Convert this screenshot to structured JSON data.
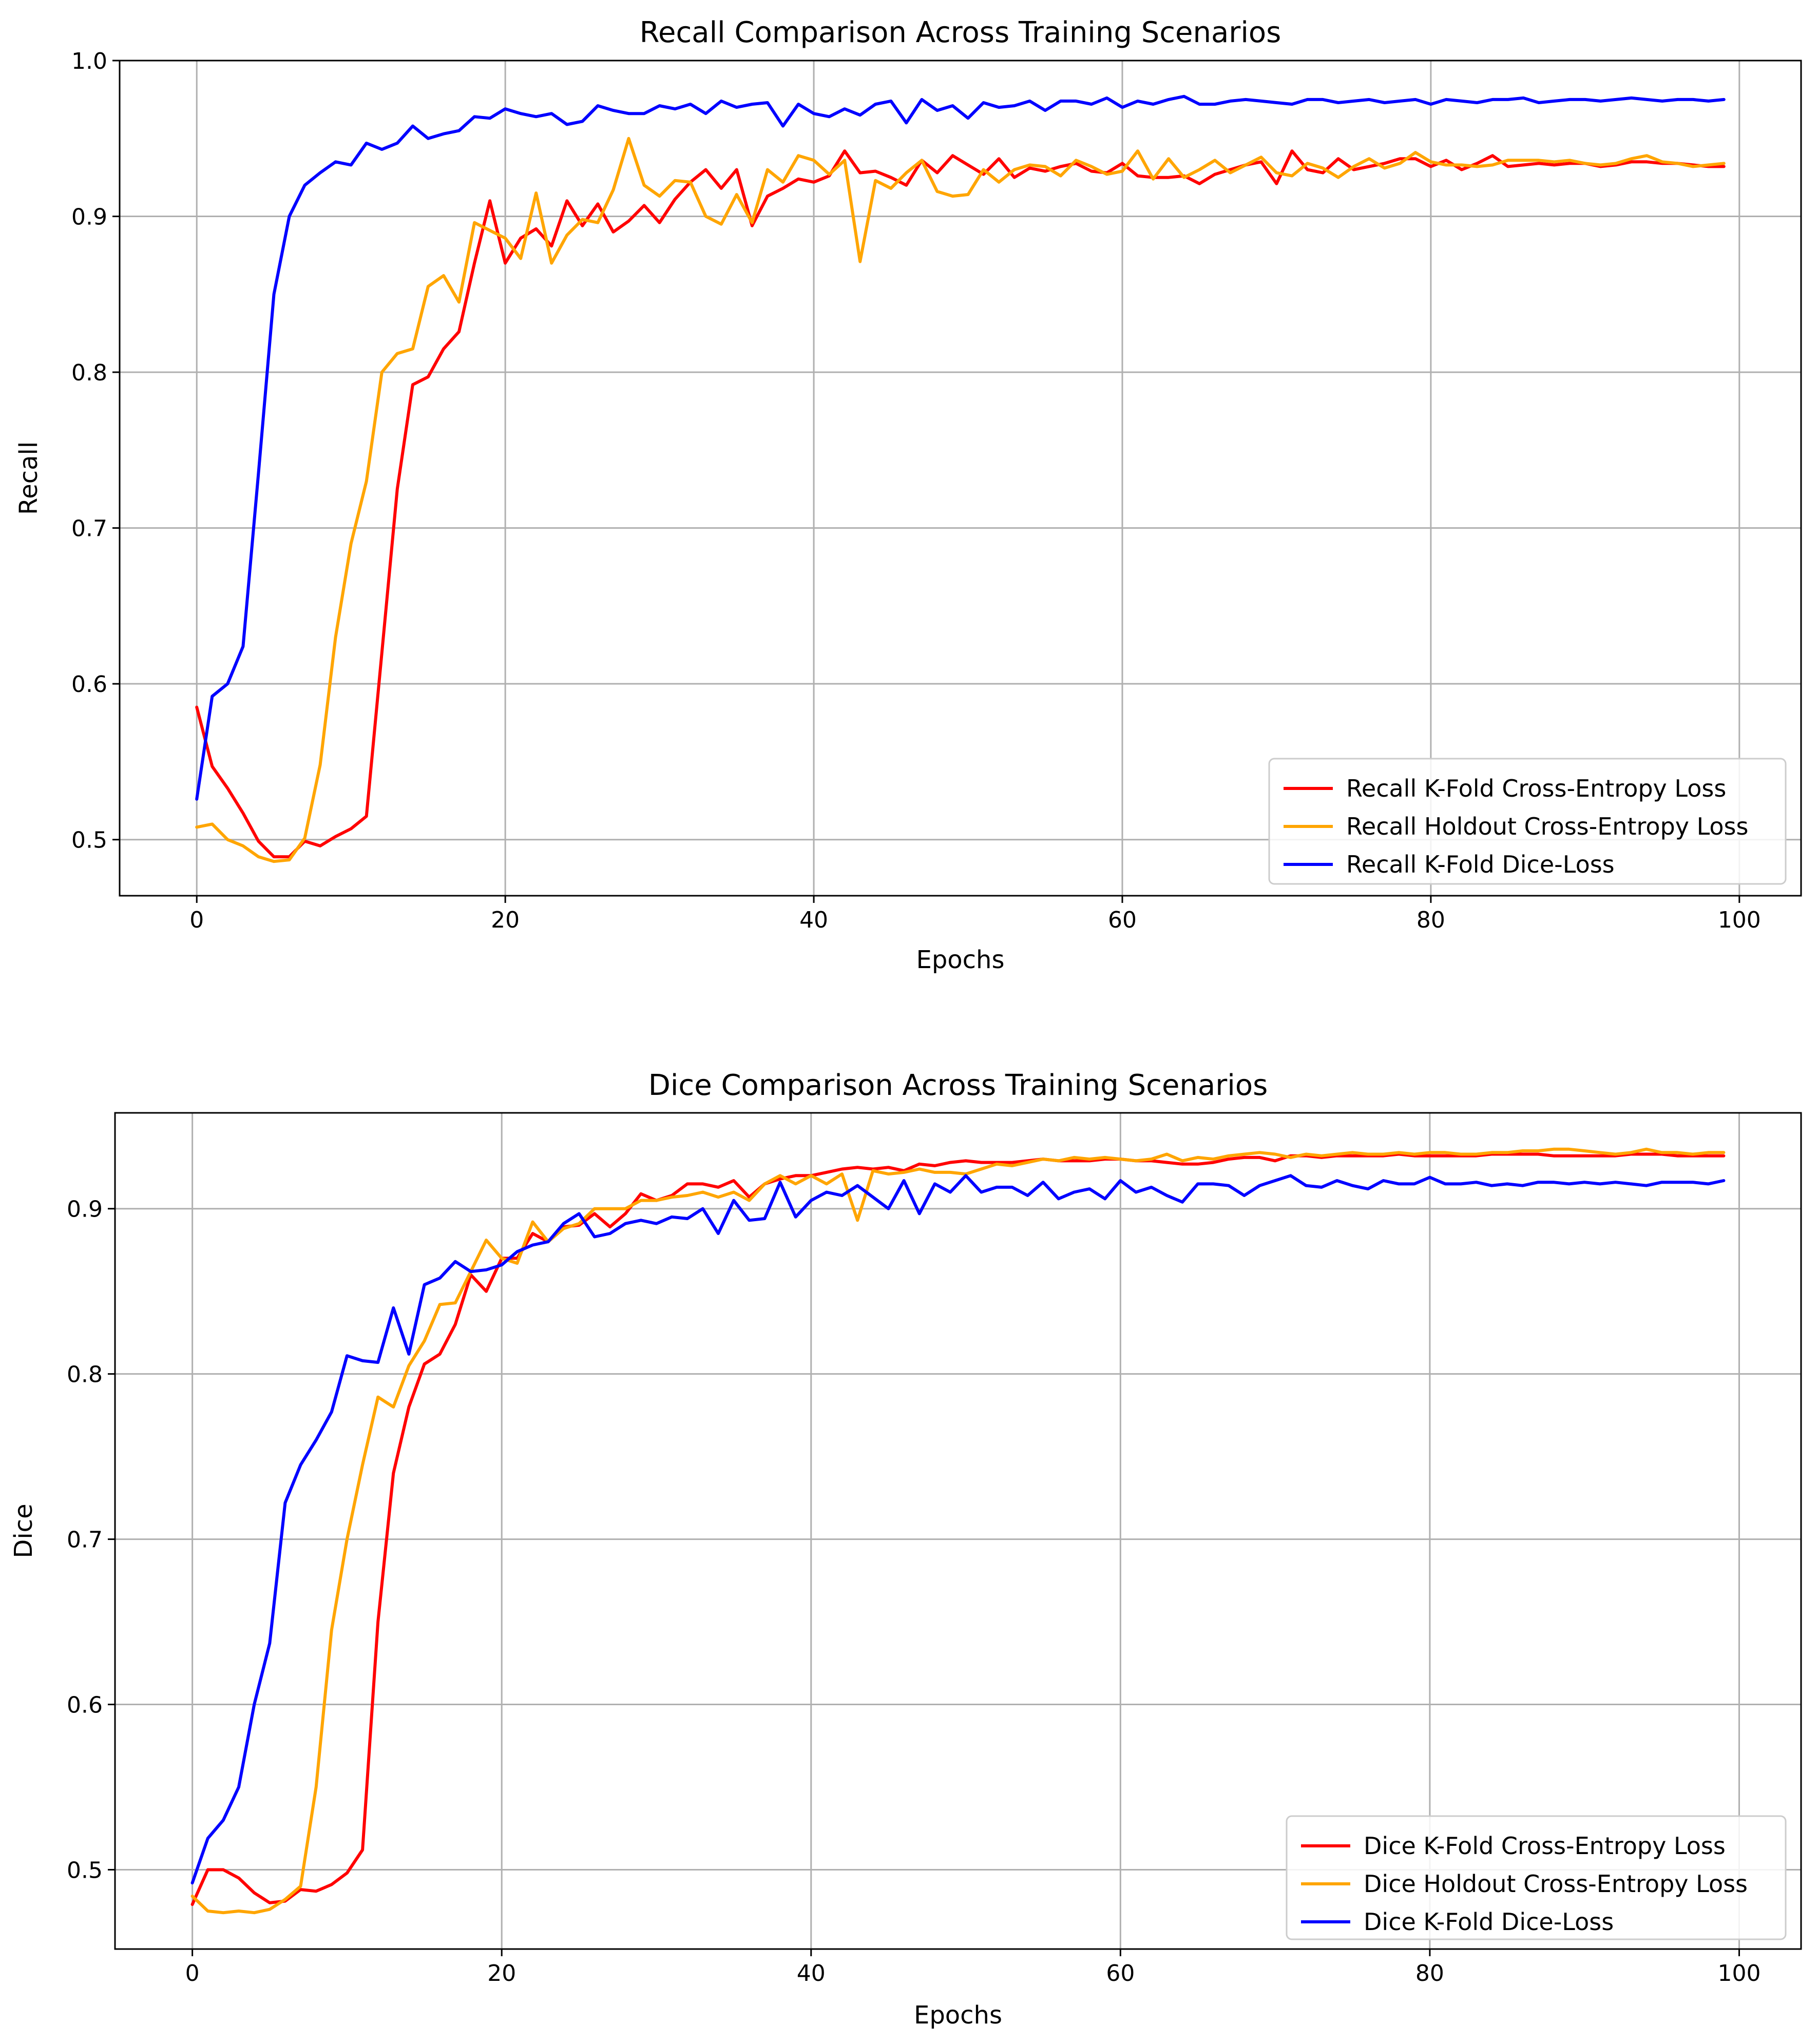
{
  "chart_data": [
    {
      "type": "line",
      "title": "Recall Comparison Across Training Scenarios",
      "xlabel": "Epochs",
      "ylabel": "Recall",
      "xlim": [
        -5,
        104
      ],
      "ylim": [
        0.464,
        1.0
      ],
      "xticks": [
        0,
        20,
        40,
        60,
        80,
        100
      ],
      "yticks": [
        0.5,
        0.6,
        0.7,
        0.8,
        0.9,
        1.0
      ],
      "xtick_labels": [
        "0",
        "20",
        "40",
        "60",
        "80",
        "100"
      ],
      "ytick_labels": [
        "0.5",
        "0.6",
        "0.7",
        "0.8",
        "0.9",
        "1.0"
      ],
      "grid": true,
      "legend_position": "lower-right",
      "series": [
        {
          "name": "Recall K-Fold Cross-Entropy Loss",
          "color": "#ff0000",
          "values": [
            0.585,
            0.547,
            0.533,
            0.517,
            0.499,
            0.489,
            0.489,
            0.499,
            0.496,
            0.502,
            0.507,
            0.515,
            0.62,
            0.725,
            0.792,
            0.797,
            0.815,
            0.826,
            0.87,
            0.91,
            0.87,
            0.886,
            0.892,
            0.881,
            0.91,
            0.894,
            0.908,
            0.89,
            0.897,
            0.907,
            0.896,
            0.911,
            0.922,
            0.93,
            0.918,
            0.93,
            0.894,
            0.913,
            0.918,
            0.924,
            0.922,
            0.926,
            0.942,
            0.928,
            0.929,
            0.925,
            0.92,
            0.936,
            0.928,
            0.939,
            0.933,
            0.927,
            0.937,
            0.925,
            0.931,
            0.929,
            0.932,
            0.934,
            0.929,
            0.928,
            0.934,
            0.926,
            0.925,
            0.925,
            0.926,
            0.921,
            0.927,
            0.93,
            0.933,
            0.935,
            0.921,
            0.942,
            0.93,
            0.928,
            0.937,
            0.93,
            0.932,
            0.934,
            0.937,
            0.937,
            0.932,
            0.936,
            0.93,
            0.934,
            0.939,
            0.932,
            0.933,
            0.934,
            0.933,
            0.934,
            0.934,
            0.932,
            0.933,
            0.935,
            0.935,
            0.934,
            0.934,
            0.933,
            0.932,
            0.932
          ]
        },
        {
          "name": "Recall Holdout Cross-Entropy Loss",
          "color": "#ffa500",
          "values": [
            0.508,
            0.51,
            0.5,
            0.496,
            0.489,
            0.486,
            0.487,
            0.501,
            0.548,
            0.63,
            0.69,
            0.73,
            0.8,
            0.812,
            0.815,
            0.855,
            0.862,
            0.845,
            0.896,
            0.891,
            0.886,
            0.873,
            0.915,
            0.87,
            0.888,
            0.898,
            0.896,
            0.917,
            0.95,
            0.92,
            0.913,
            0.923,
            0.922,
            0.9,
            0.895,
            0.914,
            0.896,
            0.93,
            0.922,
            0.939,
            0.936,
            0.927,
            0.936,
            0.871,
            0.923,
            0.918,
            0.928,
            0.936,
            0.916,
            0.913,
            0.914,
            0.93,
            0.922,
            0.93,
            0.933,
            0.932,
            0.926,
            0.936,
            0.932,
            0.927,
            0.929,
            0.942,
            0.924,
            0.937,
            0.925,
            0.93,
            0.936,
            0.928,
            0.933,
            0.938,
            0.928,
            0.926,
            0.934,
            0.931,
            0.925,
            0.932,
            0.937,
            0.931,
            0.934,
            0.941,
            0.935,
            0.933,
            0.933,
            0.932,
            0.933,
            0.936,
            0.936,
            0.936,
            0.935,
            0.936,
            0.934,
            0.933,
            0.934,
            0.937,
            0.939,
            0.935,
            0.934,
            0.932,
            0.933,
            0.934
          ]
        },
        {
          "name": "Recall K-Fold Dice-Loss",
          "color": "#0000ff",
          "values": [
            0.526,
            0.592,
            0.6,
            0.624,
            0.735,
            0.85,
            0.9,
            0.92,
            0.928,
            0.935,
            0.933,
            0.947,
            0.943,
            0.947,
            0.958,
            0.95,
            0.953,
            0.955,
            0.964,
            0.963,
            0.969,
            0.966,
            0.964,
            0.966,
            0.959,
            0.961,
            0.971,
            0.968,
            0.966,
            0.966,
            0.971,
            0.969,
            0.972,
            0.966,
            0.974,
            0.97,
            0.972,
            0.973,
            0.958,
            0.972,
            0.966,
            0.964,
            0.969,
            0.965,
            0.972,
            0.974,
            0.96,
            0.975,
            0.968,
            0.971,
            0.963,
            0.973,
            0.97,
            0.971,
            0.974,
            0.968,
            0.974,
            0.974,
            0.972,
            0.976,
            0.97,
            0.974,
            0.972,
            0.975,
            0.977,
            0.972,
            0.972,
            0.974,
            0.975,
            0.974,
            0.973,
            0.972,
            0.975,
            0.975,
            0.973,
            0.974,
            0.975,
            0.973,
            0.974,
            0.975,
            0.972,
            0.975,
            0.974,
            0.973,
            0.975,
            0.975,
            0.976,
            0.973,
            0.974,
            0.975,
            0.975,
            0.974,
            0.975,
            0.976,
            0.975,
            0.974,
            0.975,
            0.975,
            0.974,
            0.975
          ]
        }
      ]
    },
    {
      "type": "line",
      "title": "Dice Comparison Across Training Scenarios",
      "xlabel": "Epochs",
      "ylabel": "Dice",
      "xlim": [
        -5,
        104
      ],
      "ylim": [
        0.452,
        0.958
      ],
      "xticks": [
        0,
        20,
        40,
        60,
        80,
        100
      ],
      "yticks": [
        0.5,
        0.6,
        0.7,
        0.8,
        0.9
      ],
      "xtick_labels": [
        "0",
        "20",
        "40",
        "60",
        "80",
        "100"
      ],
      "ytick_labels": [
        "0.5",
        "0.6",
        "0.7",
        "0.8",
        "0.9"
      ],
      "grid": true,
      "legend_position": "lower-right",
      "series": [
        {
          "name": "Dice K-Fold Cross-Entropy Loss",
          "color": "#ff0000",
          "values": [
            0.479,
            0.5,
            0.5,
            0.495,
            0.486,
            0.48,
            0.481,
            0.488,
            0.487,
            0.491,
            0.498,
            0.512,
            0.65,
            0.74,
            0.78,
            0.806,
            0.812,
            0.83,
            0.86,
            0.85,
            0.87,
            0.87,
            0.885,
            0.88,
            0.889,
            0.89,
            0.897,
            0.889,
            0.897,
            0.909,
            0.905,
            0.908,
            0.915,
            0.915,
            0.913,
            0.917,
            0.907,
            0.915,
            0.918,
            0.92,
            0.92,
            0.922,
            0.924,
            0.925,
            0.924,
            0.925,
            0.923,
            0.927,
            0.926,
            0.928,
            0.929,
            0.928,
            0.928,
            0.928,
            0.929,
            0.93,
            0.929,
            0.929,
            0.929,
            0.93,
            0.93,
            0.929,
            0.929,
            0.928,
            0.927,
            0.927,
            0.928,
            0.93,
            0.931,
            0.931,
            0.929,
            0.932,
            0.932,
            0.931,
            0.932,
            0.932,
            0.932,
            0.932,
            0.933,
            0.932,
            0.932,
            0.932,
            0.932,
            0.932,
            0.933,
            0.933,
            0.933,
            0.933,
            0.932,
            0.932,
            0.932,
            0.932,
            0.932,
            0.933,
            0.933,
            0.933,
            0.932,
            0.932,
            0.932,
            0.932
          ]
        },
        {
          "name": "Dice Holdout Cross-Entropy Loss",
          "color": "#ffa500",
          "values": [
            0.484,
            0.475,
            0.474,
            0.475,
            0.474,
            0.476,
            0.482,
            0.49,
            0.55,
            0.645,
            0.7,
            0.745,
            0.786,
            0.78,
            0.805,
            0.82,
            0.842,
            0.843,
            0.862,
            0.881,
            0.87,
            0.867,
            0.892,
            0.88,
            0.888,
            0.891,
            0.9,
            0.9,
            0.9,
            0.905,
            0.905,
            0.907,
            0.908,
            0.91,
            0.907,
            0.91,
            0.905,
            0.915,
            0.92,
            0.915,
            0.92,
            0.915,
            0.921,
            0.893,
            0.923,
            0.921,
            0.922,
            0.924,
            0.922,
            0.922,
            0.921,
            0.924,
            0.927,
            0.926,
            0.928,
            0.93,
            0.929,
            0.931,
            0.93,
            0.931,
            0.93,
            0.929,
            0.93,
            0.933,
            0.929,
            0.931,
            0.93,
            0.932,
            0.933,
            0.934,
            0.933,
            0.931,
            0.933,
            0.932,
            0.933,
            0.934,
            0.933,
            0.933,
            0.934,
            0.933,
            0.934,
            0.934,
            0.933,
            0.933,
            0.934,
            0.934,
            0.935,
            0.935,
            0.936,
            0.936,
            0.935,
            0.934,
            0.933,
            0.934,
            0.936,
            0.934,
            0.934,
            0.933,
            0.934,
            0.934
          ]
        },
        {
          "name": "Dice K-Fold Dice-Loss",
          "color": "#0000ff",
          "values": [
            0.492,
            0.519,
            0.53,
            0.55,
            0.6,
            0.637,
            0.722,
            0.745,
            0.76,
            0.777,
            0.811,
            0.808,
            0.807,
            0.84,
            0.812,
            0.854,
            0.858,
            0.868,
            0.862,
            0.863,
            0.866,
            0.874,
            0.878,
            0.88,
            0.891,
            0.897,
            0.883,
            0.885,
            0.891,
            0.893,
            0.891,
            0.895,
            0.894,
            0.9,
            0.885,
            0.905,
            0.893,
            0.894,
            0.916,
            0.895,
            0.905,
            0.91,
            0.908,
            0.914,
            0.907,
            0.9,
            0.917,
            0.897,
            0.915,
            0.91,
            0.92,
            0.91,
            0.913,
            0.913,
            0.908,
            0.916,
            0.906,
            0.91,
            0.912,
            0.906,
            0.917,
            0.91,
            0.913,
            0.908,
            0.904,
            0.915,
            0.915,
            0.914,
            0.908,
            0.914,
            0.917,
            0.92,
            0.914,
            0.913,
            0.917,
            0.914,
            0.912,
            0.917,
            0.915,
            0.915,
            0.919,
            0.915,
            0.915,
            0.916,
            0.914,
            0.915,
            0.914,
            0.916,
            0.916,
            0.915,
            0.916,
            0.915,
            0.916,
            0.915,
            0.914,
            0.916,
            0.916,
            0.916,
            0.915,
            0.917
          ]
        }
      ]
    }
  ]
}
